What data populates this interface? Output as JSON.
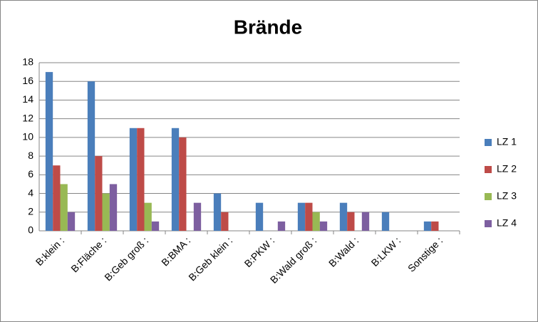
{
  "chart_data": {
    "type": "bar",
    "title": "Brände",
    "categories": [
      "B:klein :",
      "B:Fläche :",
      "B:Geb groß :",
      "B:BMA :",
      "B:Geb klein :",
      "B:PKW :",
      "B:Wald groß :",
      "B:Wald :",
      "B:LKW :",
      "Sonstige :"
    ],
    "series": [
      {
        "name": "LZ 1",
        "color": "#4a7ebb",
        "values": [
          17,
          16,
          11,
          11,
          4,
          3,
          3,
          3,
          2,
          1
        ]
      },
      {
        "name": "LZ 2",
        "color": "#be4b48",
        "values": [
          7,
          8,
          11,
          10,
          2,
          0,
          3,
          2,
          0,
          1
        ]
      },
      {
        "name": "LZ 3",
        "color": "#98b954",
        "values": [
          5,
          4,
          3,
          0,
          0,
          0,
          2,
          0,
          0,
          0
        ]
      },
      {
        "name": "LZ 4",
        "color": "#7d5fa0",
        "values": [
          2,
          5,
          1,
          3,
          0,
          1,
          1,
          2,
          0,
          0
        ]
      }
    ],
    "ylim": [
      0,
      18
    ],
    "yticks": [
      0,
      2,
      4,
      6,
      8,
      10,
      12,
      14,
      16,
      18
    ],
    "grid": true,
    "legend": "right"
  }
}
